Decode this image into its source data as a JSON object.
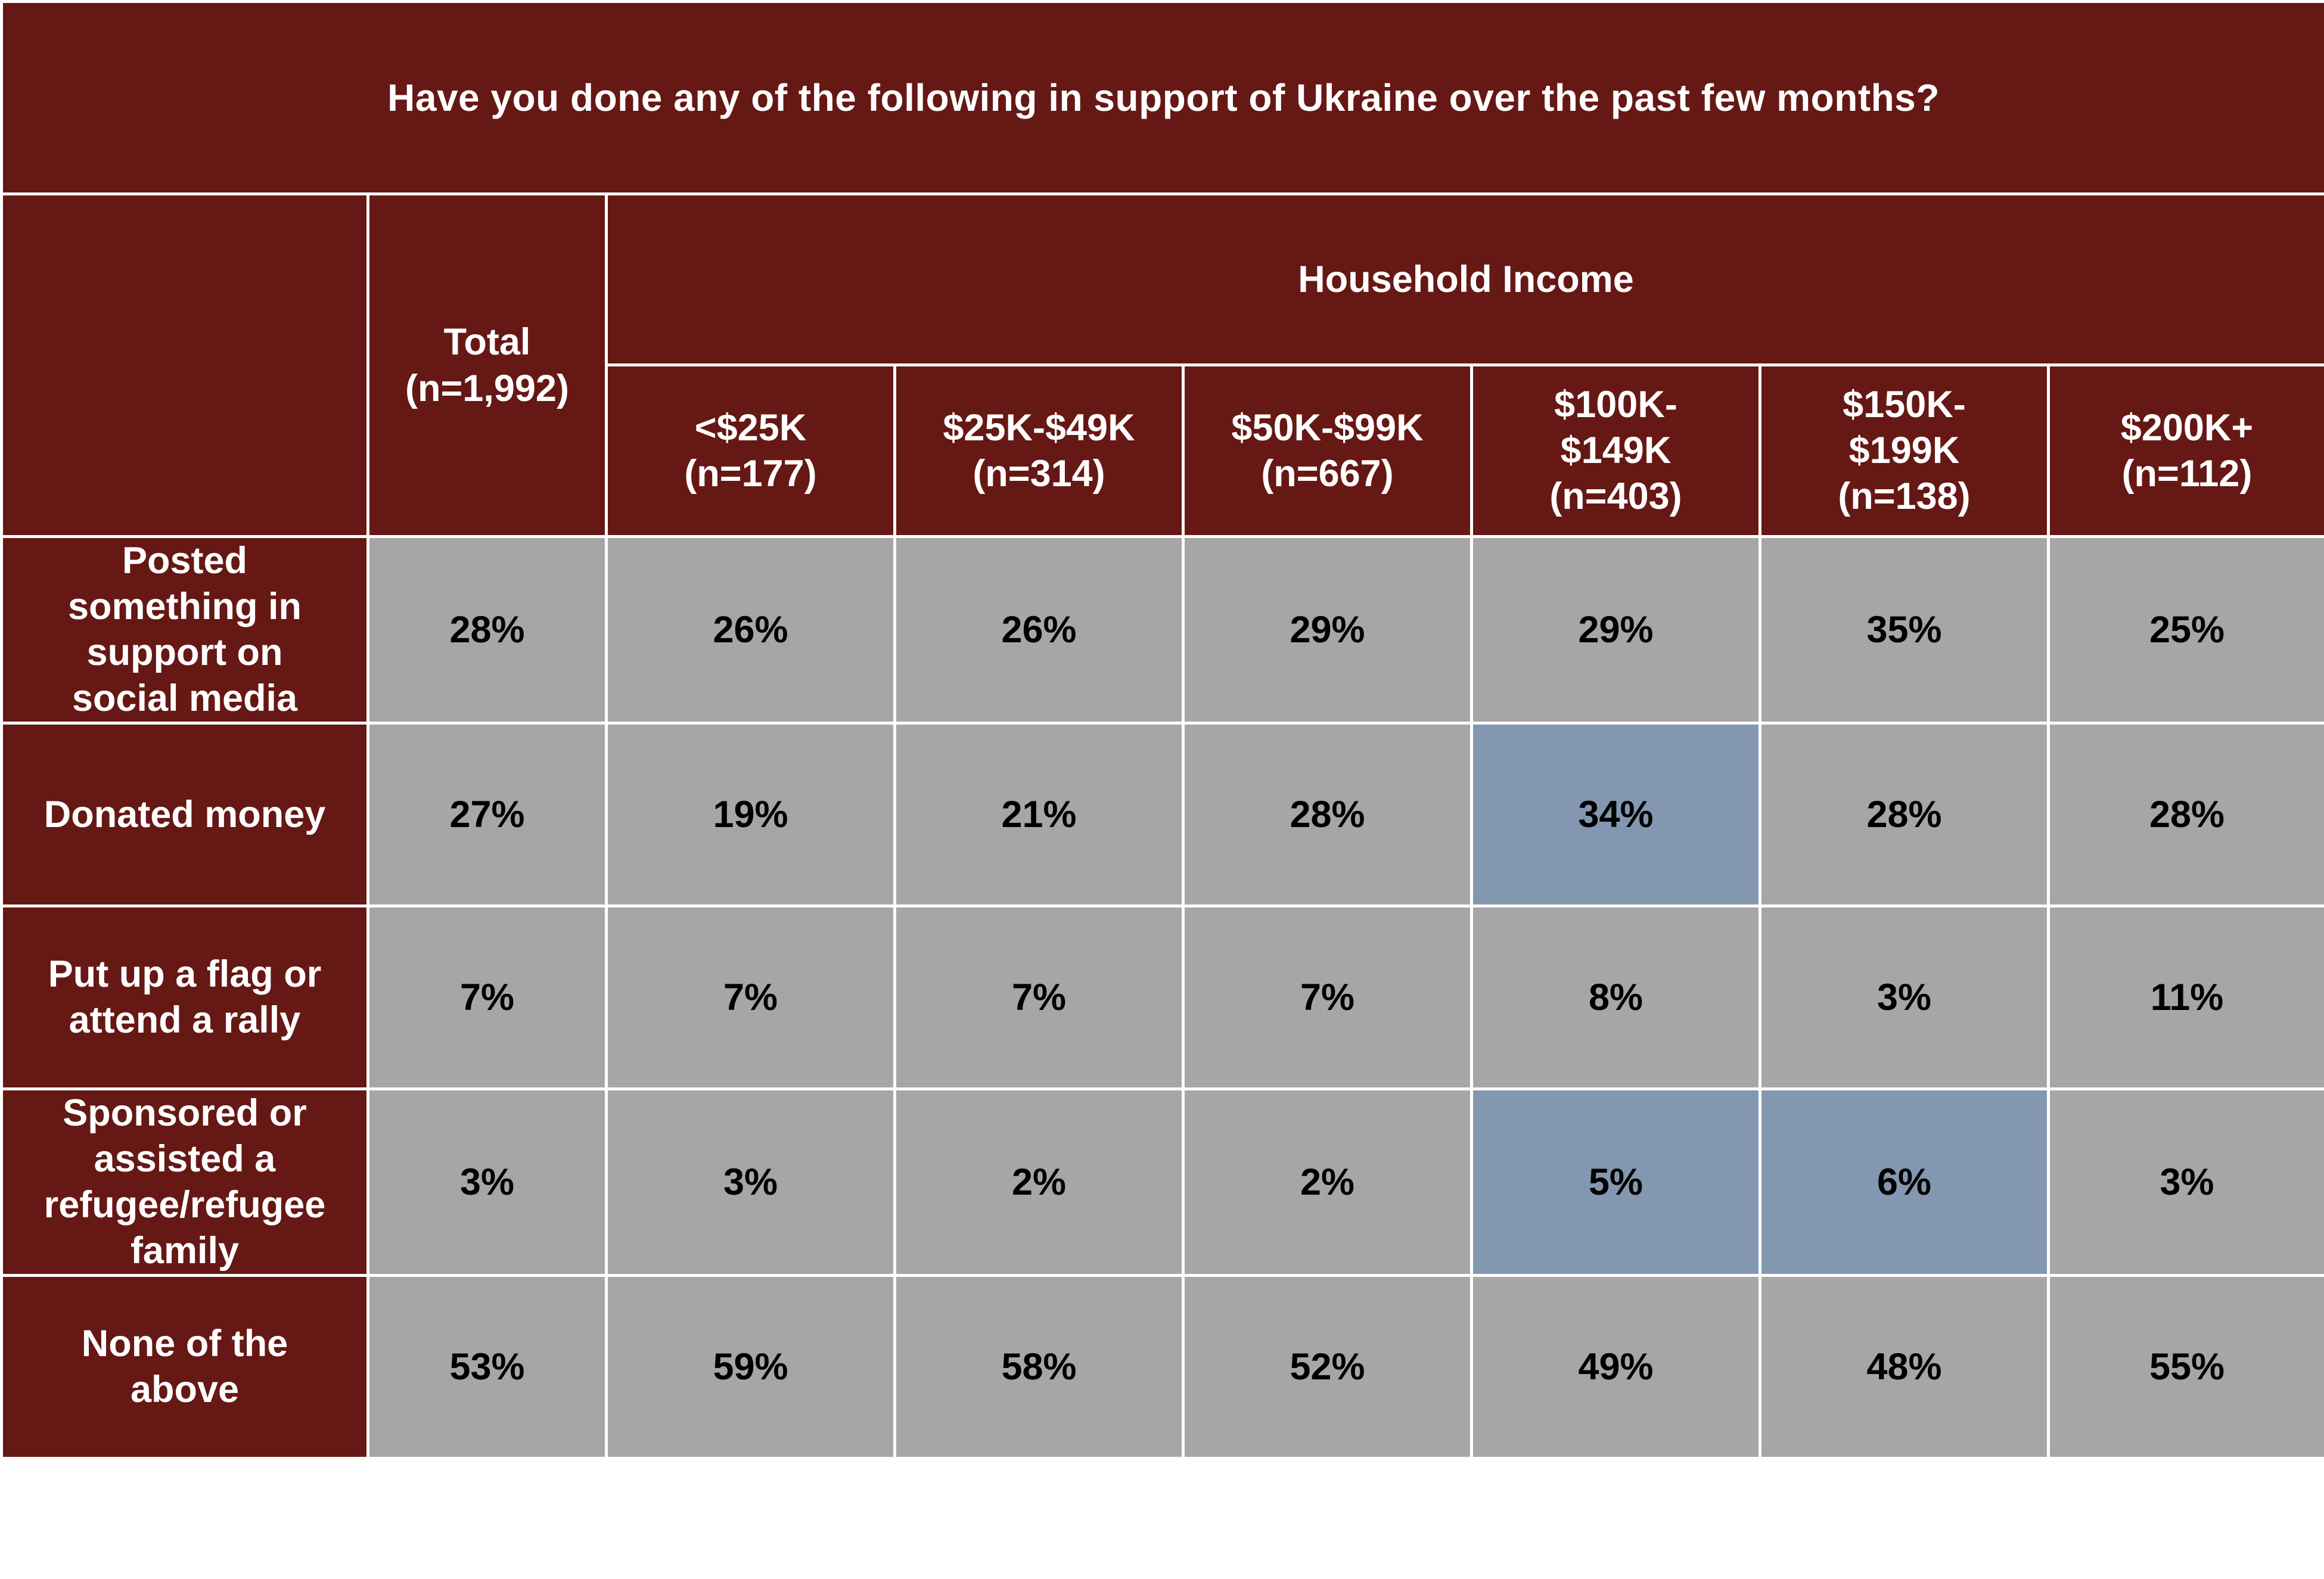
{
  "chart_data": {
    "type": "table",
    "title": "Have you done any of the following in support of Ukraine over the past few months?",
    "group_header": "Household Income",
    "columns": [
      {
        "label": "Total\n(n=1,992)"
      },
      {
        "label": "<$25K\n(n=177)"
      },
      {
        "label": "$25K-$49K\n(n=314)"
      },
      {
        "label": "$50K-$99K\n(n=667)"
      },
      {
        "label": "$100K-\n$149K\n(n=403)"
      },
      {
        "label": "$150K-\n$199K\n(n=138)"
      },
      {
        "label": "$200K+\n(n=112)"
      }
    ],
    "rows": [
      {
        "label": "Posted\nsomething in\nsupport on\nsocial media",
        "values": [
          "28%",
          "26%",
          "26%",
          "29%",
          "29%",
          "35%",
          "25%"
        ],
        "highlight": [
          false,
          false,
          false,
          false,
          false,
          false,
          false
        ]
      },
      {
        "label": "Donated money",
        "values": [
          "27%",
          "19%",
          "21%",
          "28%",
          "34%",
          "28%",
          "28%"
        ],
        "highlight": [
          false,
          false,
          false,
          false,
          true,
          false,
          false
        ]
      },
      {
        "label": "Put up a flag or\nattend a rally",
        "values": [
          "7%",
          "7%",
          "7%",
          "7%",
          "8%",
          "3%",
          "11%"
        ],
        "highlight": [
          false,
          false,
          false,
          false,
          false,
          false,
          false
        ]
      },
      {
        "label": "Sponsored or\nassisted a\nrefugee/refugee\nfamily",
        "values": [
          "3%",
          "3%",
          "2%",
          "2%",
          "5%",
          "6%",
          "3%"
        ],
        "highlight": [
          false,
          false,
          false,
          false,
          true,
          true,
          false
        ]
      },
      {
        "label": "None of the\nabove",
        "values": [
          "53%",
          "59%",
          "58%",
          "52%",
          "49%",
          "48%",
          "55%"
        ],
        "highlight": [
          false,
          false,
          false,
          false,
          false,
          false,
          false
        ]
      }
    ]
  },
  "colors": {
    "header_bg": "#661815",
    "header_text": "#ffffff",
    "cell_bg": "#a6a6a6",
    "highlight_bg": "#8497b0",
    "cell_text": "#000000",
    "grid": "#ffffff"
  }
}
